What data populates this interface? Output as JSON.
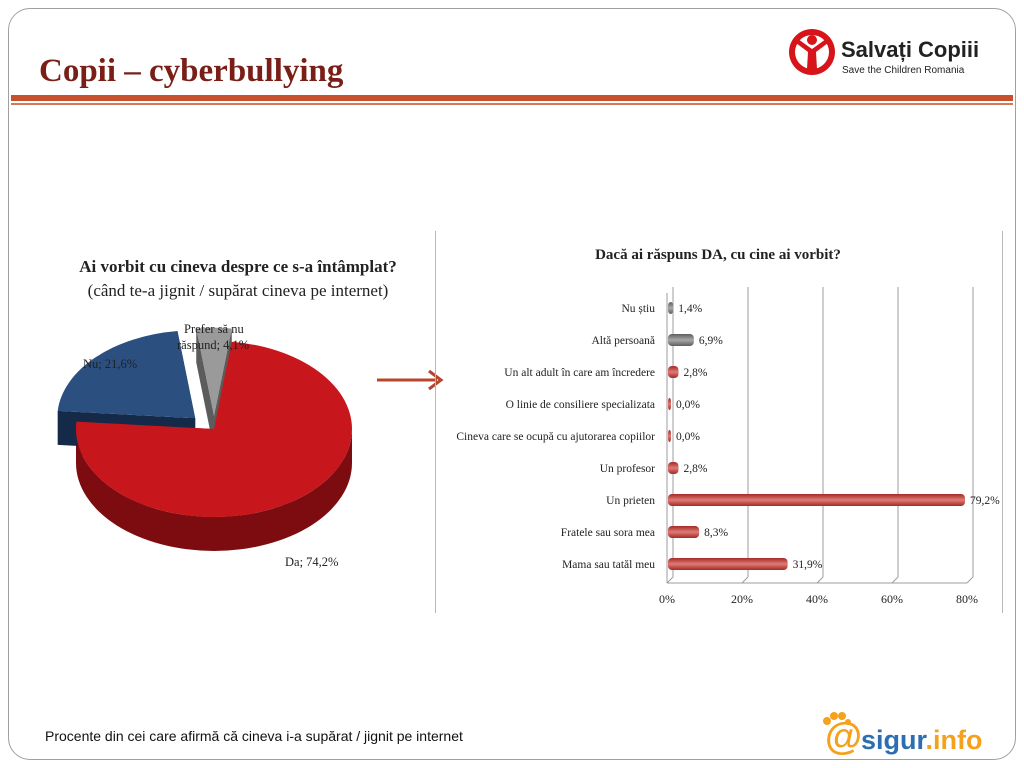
{
  "slide": {
    "title": "Copii – cyberbullying",
    "footer_note": "Procente din cei care afirmă că cineva i-a supărat / jignit pe internet"
  },
  "logos": {
    "org_name": "Salvați Copiii",
    "org_subtitle": "Save the Children Romania",
    "site_prefix": "sigur",
    "site_suffix": ".info"
  },
  "colors": {
    "title": "#7a1f17",
    "rule": "#c8502c",
    "pie_da": "#c8161d",
    "pie_nu": "#2b4f7e",
    "pie_prefer": "#9a9a9a",
    "bar_red": "#c8403c",
    "bar_gray": "#7b7b7b"
  },
  "chart_data": [
    {
      "type": "pie",
      "title": "Ai vorbit cu cineva despre ce s-a întâmplat?",
      "subtitle": "(când te-a jignit / supărat cineva  pe internet)",
      "slices": [
        {
          "label": "Da; 74,2%",
          "name": "Da",
          "value": 74.2
        },
        {
          "label": "Nu; 21,6%",
          "name": "Nu",
          "value": 21.6
        },
        {
          "label_line1": "Prefer să nu",
          "label_line2": "răspund; 4,1%",
          "name": "Prefer să nu răspund",
          "value": 4.1
        }
      ]
    },
    {
      "type": "bar",
      "orientation": "horizontal",
      "title": "Dacă ai răspuns DA, cu cine ai vorbit?",
      "xlim": [
        0,
        80
      ],
      "ticks": [
        "0%",
        "20%",
        "40%",
        "60%",
        "80%"
      ],
      "tick_values": [
        0,
        20,
        40,
        60,
        80
      ],
      "grid": true,
      "categories": [
        {
          "label": "Nu știu",
          "value": 1.4,
          "value_label": "1,4%",
          "color": "gray"
        },
        {
          "label": "Altă persoană",
          "value": 6.9,
          "value_label": "6,9%",
          "color": "gray"
        },
        {
          "label": "Un alt adult în care am încredere",
          "value": 2.8,
          "value_label": "2,8%",
          "color": "red"
        },
        {
          "label": "O linie de consiliere specializata",
          "value": 0.0,
          "value_label": "0,0%",
          "color": "red"
        },
        {
          "label": "Cineva care se ocupă cu ajutorarea copiilor",
          "value": 0.0,
          "value_label": "0,0%",
          "color": "red"
        },
        {
          "label": "Un profesor",
          "value": 2.8,
          "value_label": "2,8%",
          "color": "red"
        },
        {
          "label": "Un prieten",
          "value": 79.2,
          "value_label": "79,2%",
          "color": "red"
        },
        {
          "label": "Fratele sau sora mea",
          "value": 8.3,
          "value_label": "8,3%",
          "color": "red"
        },
        {
          "label": "Mama sau tatăl meu",
          "value": 31.9,
          "value_label": "31,9%",
          "color": "red"
        }
      ]
    }
  ]
}
